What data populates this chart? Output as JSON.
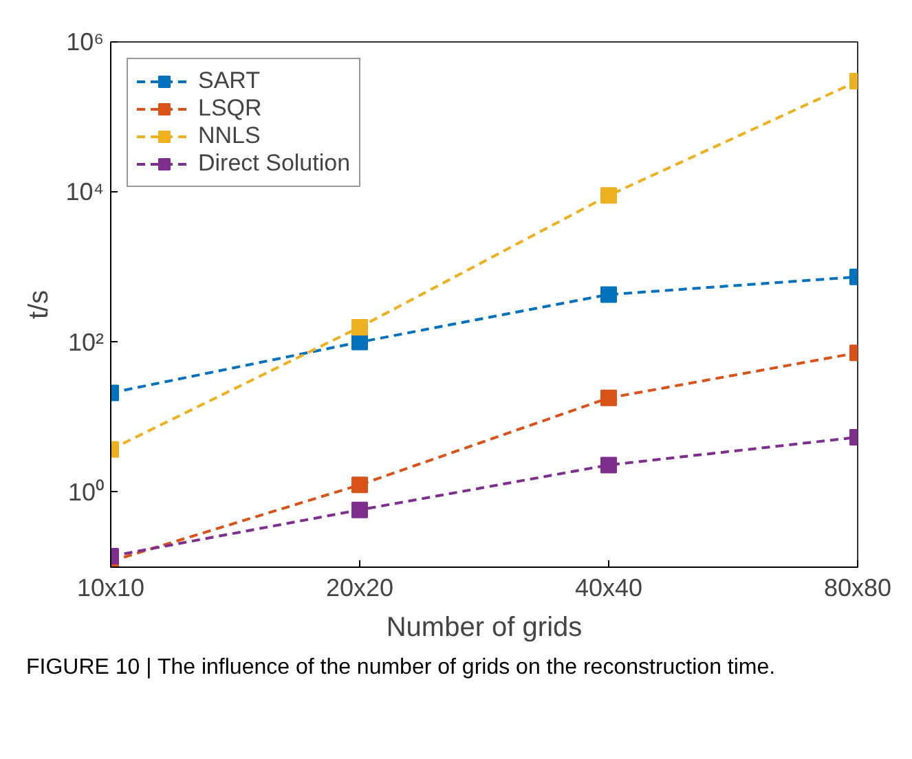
{
  "chart_data": {
    "type": "line",
    "xlabel": "Number of grids",
    "ylabel": "t/s",
    "categories": [
      "10x10",
      "20x20",
      "40x40",
      "80x80"
    ],
    "ylim": [
      0.1,
      1000000
    ],
    "yticks": [
      {
        "value": 1,
        "label": "10⁰"
      },
      {
        "value": 100,
        "label": "10²"
      },
      {
        "value": 10000,
        "label": "10⁴"
      },
      {
        "value": 1000000,
        "label": "10⁶"
      }
    ],
    "log": "y",
    "grid": false,
    "legend": "top left",
    "marker": "square",
    "line_style": "dashed",
    "series": [
      {
        "name": "SART",
        "color": "#0072bd",
        "values": [
          21,
          100,
          430,
          740
        ]
      },
      {
        "name": "LSQR",
        "color": "#d95319",
        "values": [
          0.12,
          1.25,
          18,
          72
        ]
      },
      {
        "name": "NNLS",
        "color": "#edb120",
        "values": [
          3.7,
          158,
          9000,
          300000
        ]
      },
      {
        "name": "Direct Solution",
        "color": "#7e2f8e",
        "values": [
          0.14,
          0.58,
          2.3,
          5.4
        ]
      }
    ],
    "annotations": [
      "FIGURE 10 | The influence of the number of grids on the reconstruction time."
    ]
  }
}
